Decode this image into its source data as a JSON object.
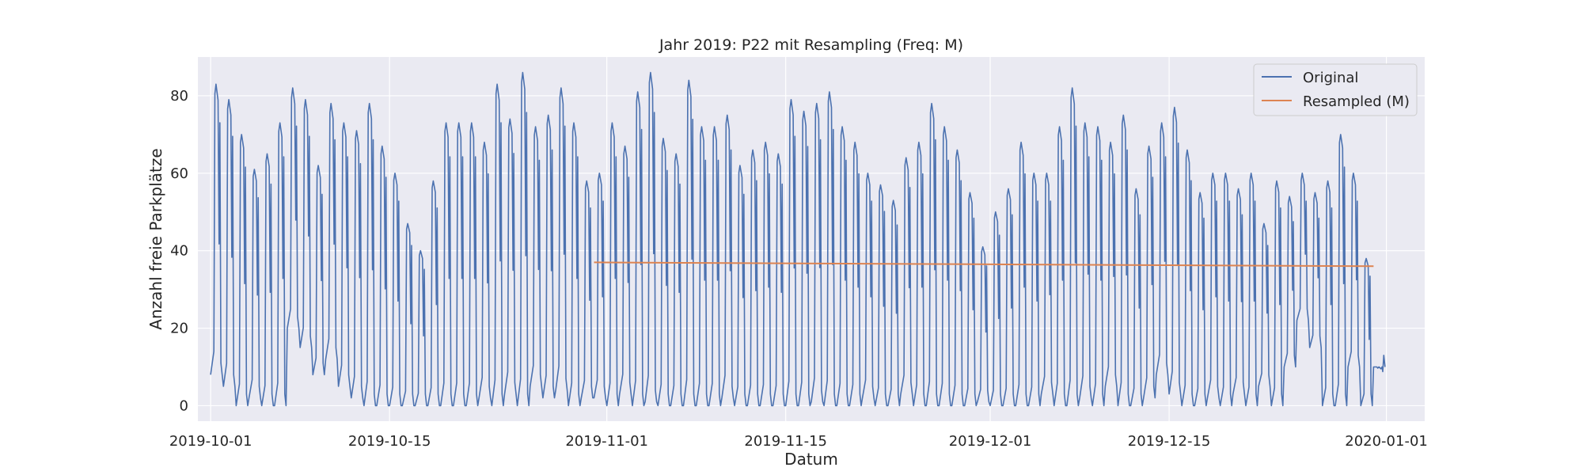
{
  "chart_data": {
    "type": "line",
    "title": "Jahr 2019: P22 mit Resampling (Freq: M)",
    "xlabel": "Datum",
    "ylabel": "Anzahl freie Parkplätze",
    "x_range": [
      "2019-09-30",
      "2020-01-04"
    ],
    "ylim": [
      -4,
      90
    ],
    "x_ticks": [
      "2019-10-01",
      "2019-10-15",
      "2019-11-01",
      "2019-11-15",
      "2019-12-01",
      "2019-12-15",
      "2020-01-01"
    ],
    "y_ticks": [
      0,
      20,
      40,
      60,
      80
    ],
    "grid": true,
    "legend_position": "top-right",
    "series": [
      {
        "name": "Original",
        "color": "#4c72b0",
        "sampling": "approx. daily pattern (peak, trough)",
        "x": [
          "2019-10-01",
          "2019-10-02",
          "2019-10-03",
          "2019-10-04",
          "2019-10-05",
          "2019-10-06",
          "2019-10-07",
          "2019-10-08",
          "2019-10-09",
          "2019-10-10",
          "2019-10-11",
          "2019-10-12",
          "2019-10-13",
          "2019-10-14",
          "2019-10-15",
          "2019-10-16",
          "2019-10-17",
          "2019-10-18",
          "2019-10-19",
          "2019-10-20",
          "2019-10-21",
          "2019-10-22",
          "2019-10-23",
          "2019-10-24",
          "2019-10-25",
          "2019-10-26",
          "2019-10-27",
          "2019-10-28",
          "2019-10-29",
          "2019-10-30",
          "2019-10-31",
          "2019-11-01",
          "2019-11-02",
          "2019-11-03",
          "2019-11-04",
          "2019-11-05",
          "2019-11-06",
          "2019-11-07",
          "2019-11-08",
          "2019-11-09",
          "2019-11-10",
          "2019-11-11",
          "2019-11-12",
          "2019-11-13",
          "2019-11-14",
          "2019-11-15",
          "2019-11-16",
          "2019-11-17",
          "2019-11-18",
          "2019-11-19",
          "2019-11-20",
          "2019-11-21",
          "2019-11-22",
          "2019-11-23",
          "2019-11-24",
          "2019-11-25",
          "2019-11-26",
          "2019-11-27",
          "2019-11-28",
          "2019-11-29",
          "2019-11-30",
          "2019-12-01",
          "2019-12-02",
          "2019-12-03",
          "2019-12-04",
          "2019-12-05",
          "2019-12-06",
          "2019-12-07",
          "2019-12-08",
          "2019-12-09",
          "2019-12-10",
          "2019-12-11",
          "2019-12-12",
          "2019-12-13",
          "2019-12-14",
          "2019-12-15",
          "2019-12-16",
          "2019-12-17",
          "2019-12-18",
          "2019-12-19",
          "2019-12-20",
          "2019-12-21",
          "2019-12-22",
          "2019-12-23",
          "2019-12-24",
          "2019-12-25",
          "2019-12-26",
          "2019-12-27",
          "2019-12-28",
          "2019-12-29",
          "2019-12-30",
          "2019-12-31"
        ],
        "peaks": [
          83,
          79,
          70,
          61,
          65,
          73,
          82,
          79,
          62,
          78,
          73,
          71,
          78,
          67,
          60,
          47,
          40,
          58,
          73,
          73,
          73,
          68,
          83,
          74,
          86,
          72,
          75,
          82,
          73,
          58,
          60,
          73,
          67,
          81,
          86,
          69,
          65,
          84,
          72,
          72,
          75,
          62,
          66,
          68,
          65,
          79,
          76,
          78,
          81,
          72,
          68,
          60,
          57,
          53,
          64,
          68,
          78,
          72,
          66,
          55,
          41,
          50,
          56,
          68,
          60,
          60,
          72,
          82,
          73,
          72,
          68,
          75,
          56,
          67,
          73,
          77,
          66,
          55,
          60,
          60,
          56,
          60,
          47,
          58,
          54,
          60,
          55,
          58,
          70,
          60,
          38,
          10
        ],
        "troughs": [
          8,
          5,
          0,
          2,
          0,
          0,
          20,
          15,
          8,
          12,
          5,
          2,
          0,
          0,
          0,
          0,
          0,
          0,
          0,
          0,
          0,
          2,
          0,
          3,
          0,
          5,
          2,
          4,
          0,
          2,
          2,
          0,
          3,
          0,
          1,
          0,
          0,
          0,
          0,
          0,
          2,
          0,
          0,
          0,
          0,
          0,
          0,
          1,
          0,
          0,
          0,
          2,
          0,
          0,
          3,
          0,
          0,
          0,
          0,
          0,
          1,
          0,
          0,
          0,
          0,
          3,
          0,
          0,
          2,
          0,
          5,
          0,
          0,
          2,
          8,
          3,
          0,
          0,
          2,
          0,
          3,
          0,
          5,
          0,
          10,
          22,
          15,
          0,
          0,
          10,
          0,
          10
        ]
      },
      {
        "name": "Resampled (M)",
        "color": "#dd8452",
        "x": [
          "2019-10-31",
          "2019-11-30",
          "2019-12-31"
        ],
        "y": [
          37,
          36.5,
          36
        ]
      }
    ]
  }
}
